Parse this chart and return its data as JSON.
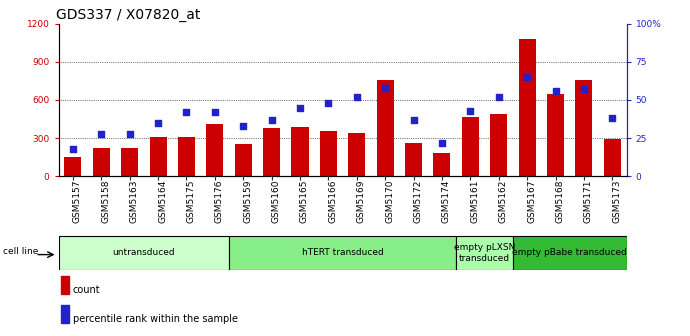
{
  "title": "GDS337 / X07820_at",
  "samples": [
    "GSM5157",
    "GSM5158",
    "GSM5163",
    "GSM5164",
    "GSM5175",
    "GSM5176",
    "GSM5159",
    "GSM5160",
    "GSM5165",
    "GSM5166",
    "GSM5169",
    "GSM5170",
    "GSM5172",
    "GSM5174",
    "GSM5161",
    "GSM5162",
    "GSM5167",
    "GSM5168",
    "GSM5171",
    "GSM5173"
  ],
  "counts": [
    155,
    225,
    220,
    310,
    310,
    415,
    255,
    380,
    390,
    360,
    340,
    760,
    265,
    185,
    470,
    490,
    1080,
    645,
    760,
    295
  ],
  "percentiles": [
    18,
    28,
    28,
    35,
    42,
    42,
    33,
    37,
    45,
    48,
    52,
    58,
    37,
    22,
    43,
    52,
    65,
    56,
    57,
    38
  ],
  "bar_color": "#cc0000",
  "dot_color": "#2222cc",
  "ylim_left": [
    0,
    1200
  ],
  "ylim_right": [
    0,
    100
  ],
  "yticks_left": [
    0,
    300,
    600,
    900,
    1200
  ],
  "yticks_right": [
    0,
    25,
    50,
    75,
    100
  ],
  "yticklabels_right": [
    "0",
    "25",
    "50",
    "75",
    "100%"
  ],
  "groups": [
    {
      "label": "untransduced",
      "start": 0,
      "end": 6,
      "color": "#ccffcc"
    },
    {
      "label": "hTERT transduced",
      "start": 6,
      "end": 14,
      "color": "#88ee88"
    },
    {
      "label": "empty pLXSN\ntransduced",
      "start": 14,
      "end": 16,
      "color": "#aaffaa"
    },
    {
      "label": "empty pBabe transduced",
      "start": 16,
      "end": 20,
      "color": "#33bb33"
    }
  ],
  "cell_line_label": "cell line",
  "legend_items": [
    {
      "label": "count",
      "color": "#cc0000"
    },
    {
      "label": "percentile rank within the sample",
      "color": "#2222cc"
    }
  ],
  "background_color": "#ffffff",
  "title_fontsize": 10,
  "tick_fontsize": 6.5,
  "label_fontsize": 7
}
